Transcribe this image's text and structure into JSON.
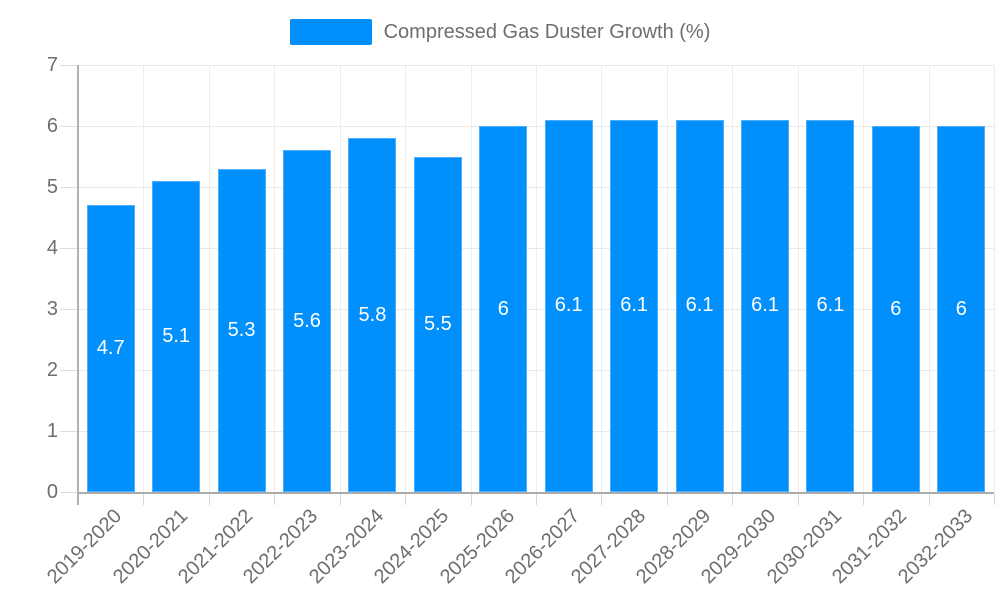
{
  "legend": {
    "label": "Compressed Gas Duster Growth (%)",
    "swatch_color": "#008FFB"
  },
  "chart_data": {
    "type": "bar",
    "title": "",
    "xlabel": "",
    "ylabel": "",
    "categories": [
      "2019-2020",
      "2020-2021",
      "2021-2022",
      "2022-2023",
      "2023-2024",
      "2024-2025",
      "2025-2026",
      "2026-2027",
      "2027-2028",
      "2028-2029",
      "2029-2030",
      "2030-2031",
      "2031-2032",
      "2032-2033"
    ],
    "series": [
      {
        "name": "Compressed Gas Duster Growth (%)",
        "values": [
          4.7,
          5.1,
          5.3,
          5.6,
          5.8,
          5.5,
          6,
          6.1,
          6.1,
          6.1,
          6.1,
          6.1,
          6,
          6
        ]
      }
    ],
    "data_labels": [
      "4.7",
      "5.1",
      "5.3",
      "5.6",
      "5.8",
      "5.5",
      "6",
      "6.1",
      "6.1",
      "6.1",
      "6.1",
      "6.1",
      "6",
      "6"
    ],
    "ylim": [
      0,
      7
    ],
    "yticks": [
      0,
      1,
      2,
      3,
      4,
      5,
      6,
      7
    ],
    "grid": true,
    "legend_position": "top",
    "colors": {
      "bar": "#008FFB",
      "data_label": "#ffffff",
      "axis_label": "#6e6e6e",
      "gridline": "#e9e9e9",
      "axis_line": "#b0b0b0"
    }
  }
}
